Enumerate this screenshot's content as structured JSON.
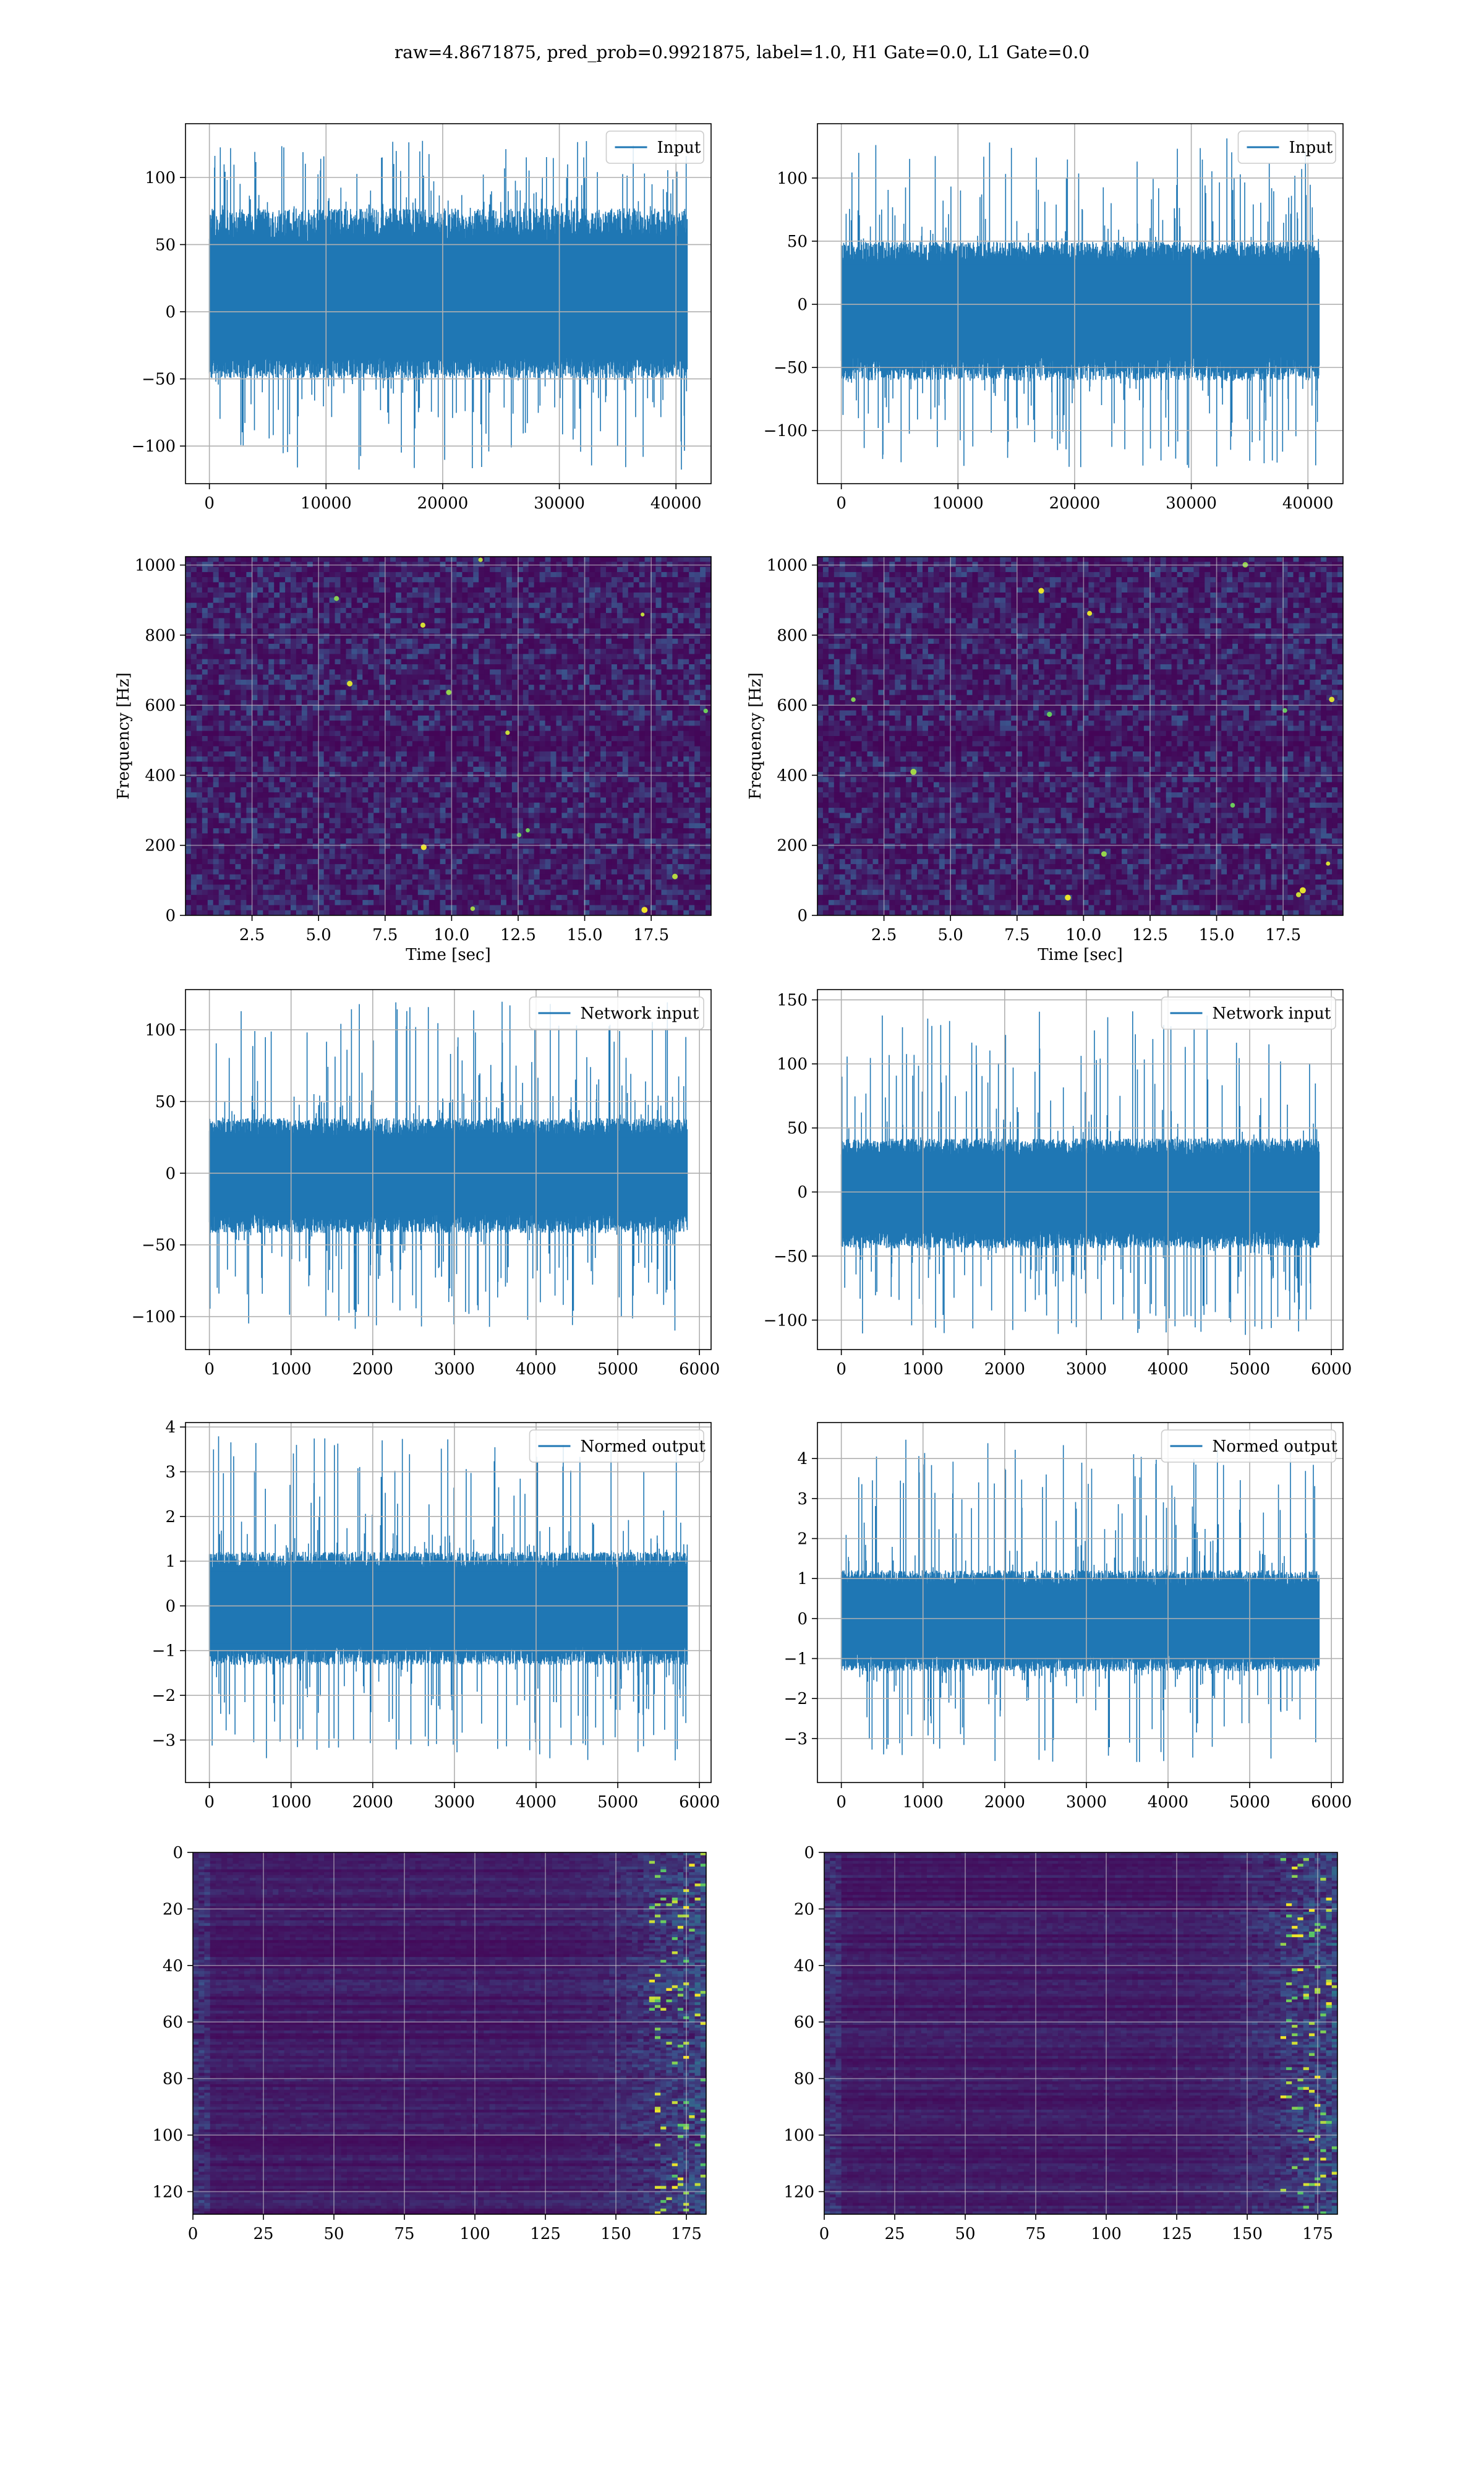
{
  "figure": {
    "suptitle": "raw=4.8671875, pred_prob=0.9921875, label=1.0, H1 Gate=0.0, L1 Gate=0.0",
    "colors": {
      "line": "#1f77b4",
      "grid": "#b0b0b0",
      "spec_base": "#3b0f57",
      "spec_mid": "#2a6d8e",
      "spec_hot": "#5ec962",
      "spec_peak": "#fde725"
    }
  },
  "chart_data": [
    {
      "id": "input-h1",
      "type": "line",
      "legend": "Input",
      "legend_placement": "upper right",
      "x_range": [
        0,
        40960
      ],
      "ylim": [
        -128,
        140
      ],
      "xticks": [
        "0",
        "10000",
        "20000",
        "30000",
        "40000"
      ],
      "xtick_values": [
        0,
        10000,
        20000,
        30000,
        40000
      ],
      "yticks": [
        "100",
        "50",
        "0",
        "−50",
        "−100"
      ],
      "ytick_values": [
        100,
        50,
        0,
        -50,
        -100
      ],
      "envelope": {
        "core": [
          -45,
          70
        ],
        "peaks": [
          -118,
          128
        ]
      },
      "grid": true
    },
    {
      "id": "input-l1",
      "type": "line",
      "legend": "Input",
      "legend_placement": "upper right",
      "x_range": [
        0,
        40960
      ],
      "ylim": [
        -142,
        143
      ],
      "xticks": [
        "0",
        "10000",
        "20000",
        "30000",
        "40000"
      ],
      "xtick_values": [
        0,
        10000,
        20000,
        30000,
        40000
      ],
      "yticks": [
        "100",
        "50",
        "0",
        "−50",
        "−100"
      ],
      "ytick_values": [
        100,
        50,
        0,
        -50,
        -100
      ],
      "envelope": {
        "core": [
          -55,
          45
        ],
        "peaks": [
          -130,
          132
        ]
      },
      "grid": true
    },
    {
      "id": "spectrogram-h1",
      "type": "heatmap",
      "ylabel": "Frequency [Hz]",
      "xlabel": "Time [sec]",
      "xlim": [
        0,
        19.75
      ],
      "ylim": [
        0,
        1024
      ],
      "xticks": [
        "2.5",
        "5.0",
        "7.5",
        "10.0",
        "12.5",
        "15.0",
        "17.5"
      ],
      "xtick_values": [
        2.5,
        5,
        7.5,
        10,
        12.5,
        15,
        17.5
      ],
      "yticks": [
        "1000",
        "800",
        "600",
        "400",
        "200",
        "0"
      ],
      "ytick_values": [
        1000,
        800,
        600,
        400,
        200,
        0
      ],
      "grid": true
    },
    {
      "id": "spectrogram-l1",
      "type": "heatmap",
      "ylabel": "Frequency [Hz]",
      "xlabel": "Time [sec]",
      "xlim": [
        0,
        19.75
      ],
      "ylim": [
        0,
        1024
      ],
      "xticks": [
        "2.5",
        "5.0",
        "7.5",
        "10.0",
        "12.5",
        "15.0",
        "17.5"
      ],
      "xtick_values": [
        2.5,
        5,
        7.5,
        10,
        12.5,
        15,
        17.5
      ],
      "yticks": [
        "1000",
        "800",
        "600",
        "400",
        "200",
        "0"
      ],
      "ytick_values": [
        1000,
        800,
        600,
        400,
        200,
        0
      ],
      "grid": true
    },
    {
      "id": "network-input-h1",
      "type": "line",
      "legend": "Network input",
      "legend_placement": "upper right",
      "x_range": [
        0,
        5850
      ],
      "ylim": [
        -123,
        128
      ],
      "xticks": [
        "0",
        "1000",
        "2000",
        "3000",
        "4000",
        "5000",
        "6000"
      ],
      "xtick_values": [
        0,
        1000,
        2000,
        3000,
        4000,
        5000,
        6000
      ],
      "yticks": [
        "100",
        "50",
        "0",
        "−50",
        "−100"
      ],
      "ytick_values": [
        100,
        50,
        0,
        -50,
        -100
      ],
      "envelope": {
        "core": [
          -38,
          35
        ],
        "peaks": [
          -112,
          120
        ]
      },
      "grid": true
    },
    {
      "id": "network-input-l1",
      "type": "line",
      "legend": "Network input",
      "legend_placement": "upper right",
      "x_range": [
        0,
        5850
      ],
      "ylim": [
        -123,
        158
      ],
      "xticks": [
        "0",
        "1000",
        "2000",
        "3000",
        "4000",
        "5000",
        "6000"
      ],
      "xtick_values": [
        0,
        1000,
        2000,
        3000,
        4000,
        5000,
        6000
      ],
      "yticks": [
        "150",
        "100",
        "50",
        "0",
        "−50",
        "−100"
      ],
      "ytick_values": [
        150,
        100,
        50,
        0,
        -50,
        -100
      ],
      "envelope": {
        "core": [
          -40,
          38
        ],
        "peaks": [
          -112,
          142
        ]
      },
      "grid": true
    },
    {
      "id": "normed-output-h1",
      "type": "line",
      "legend": "Normed output",
      "legend_placement": "upper right",
      "x_range": [
        0,
        5850
      ],
      "ylim": [
        -3.95,
        4.1
      ],
      "xticks": [
        "0",
        "1000",
        "2000",
        "3000",
        "4000",
        "5000",
        "6000"
      ],
      "xtick_values": [
        0,
        1000,
        2000,
        3000,
        4000,
        5000,
        6000
      ],
      "yticks": [
        "4",
        "3",
        "2",
        "1",
        "0",
        "−1",
        "−2",
        "−3"
      ],
      "ytick_values": [
        4,
        3,
        2,
        1,
        0,
        -1,
        -2,
        -3
      ],
      "envelope": {
        "core": [
          -1.2,
          1.1
        ],
        "peaks": [
          -3.5,
          3.8
        ]
      },
      "grid": true
    },
    {
      "id": "normed-output-l1",
      "type": "line",
      "legend": "Normed output",
      "legend_placement": "upper right",
      "x_range": [
        0,
        5850
      ],
      "ylim": [
        -4.1,
        4.9
      ],
      "xticks": [
        "0",
        "1000",
        "2000",
        "3000",
        "4000",
        "5000",
        "6000"
      ],
      "xtick_values": [
        0,
        1000,
        2000,
        3000,
        4000,
        5000,
        6000
      ],
      "yticks": [
        "4",
        "3",
        "2",
        "1",
        "0",
        "−1",
        "−2",
        "−3"
      ],
      "ytick_values": [
        4,
        3,
        2,
        1,
        0,
        -1,
        -2,
        -3
      ],
      "envelope": {
        "core": [
          -1.2,
          1.1
        ],
        "peaks": [
          -3.6,
          4.5
        ]
      },
      "grid": true
    },
    {
      "id": "feature-map-h1",
      "type": "heatmap",
      "xlim": [
        0,
        182
      ],
      "ylim": [
        128,
        0
      ],
      "xticks": [
        "0",
        "25",
        "50",
        "75",
        "100",
        "125",
        "150",
        "175"
      ],
      "xtick_values": [
        0,
        25,
        50,
        75,
        100,
        125,
        150,
        175
      ],
      "yticks": [
        "0",
        "20",
        "40",
        "60",
        "80",
        "100",
        "120"
      ],
      "ytick_values": [
        0,
        20,
        40,
        60,
        80,
        100,
        120
      ],
      "grid": true
    },
    {
      "id": "feature-map-l1",
      "type": "heatmap",
      "xlim": [
        0,
        182
      ],
      "ylim": [
        128,
        0
      ],
      "xticks": [
        "0",
        "25",
        "50",
        "75",
        "100",
        "125",
        "150",
        "175"
      ],
      "xtick_values": [
        0,
        25,
        50,
        75,
        100,
        125,
        150,
        175
      ],
      "yticks": [
        "0",
        "20",
        "40",
        "60",
        "80",
        "100",
        "120"
      ],
      "ytick_values": [
        0,
        20,
        40,
        60,
        80,
        100,
        120
      ],
      "grid": true
    }
  ]
}
